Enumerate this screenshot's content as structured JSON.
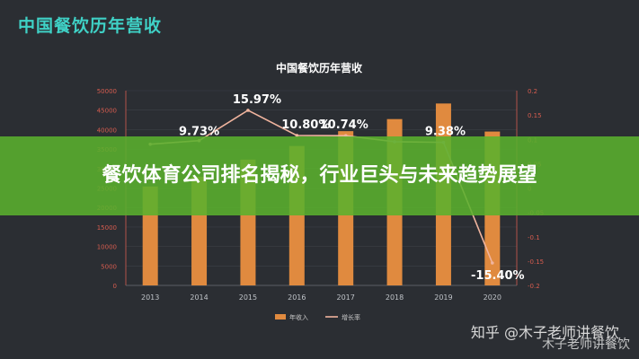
{
  "page_title": "中国餐饮历年营收",
  "banner_text": "餐饮体育公司排名揭秘，行业巨头与未来趋势展望",
  "watermark": "知乎 @木子老师讲餐饮",
  "watermark2": "木子老师讲餐饮",
  "colors": {
    "bar": "#e08a3f",
    "line": "#f0b49e",
    "axis_left": "#d65c4f",
    "axis_right": "#d65c4f",
    "banner": "#5ab02d"
  },
  "chart_data": {
    "type": "bar",
    "title": "中国餐饮历年营收",
    "categories": [
      "2013",
      "2014",
      "2015",
      "2016",
      "2017",
      "2018",
      "2019",
      "2020"
    ],
    "left_axis": {
      "ticks": [
        0,
        5000,
        10000,
        15000,
        20000,
        25000,
        30000,
        35000,
        40000,
        45000,
        50000
      ],
      "ylim": [
        0,
        50000
      ]
    },
    "right_axis": {
      "ticks": [
        0.2,
        0.15,
        0.1,
        0.05,
        0,
        -0.05,
        -0.1,
        -0.15,
        -0.2
      ],
      "ylim": [
        -0.2,
        0.2
      ]
    },
    "series": [
      {
        "name": "年收入",
        "type": "bar",
        "values": [
          25400,
          27900,
          32300,
          35800,
          39600,
          42700,
          46700,
          39500
        ]
      },
      {
        "name": "增长率",
        "type": "line",
        "values": [
          0.09,
          0.0973,
          0.1597,
          0.108,
          0.1074,
          0.095,
          0.0938,
          -0.154
        ]
      }
    ],
    "data_labels": [
      "9.73%",
      "15.97%",
      "10.80%",
      "10.74%",
      "9.38%",
      "-15.40%"
    ],
    "legend": "bottom"
  }
}
